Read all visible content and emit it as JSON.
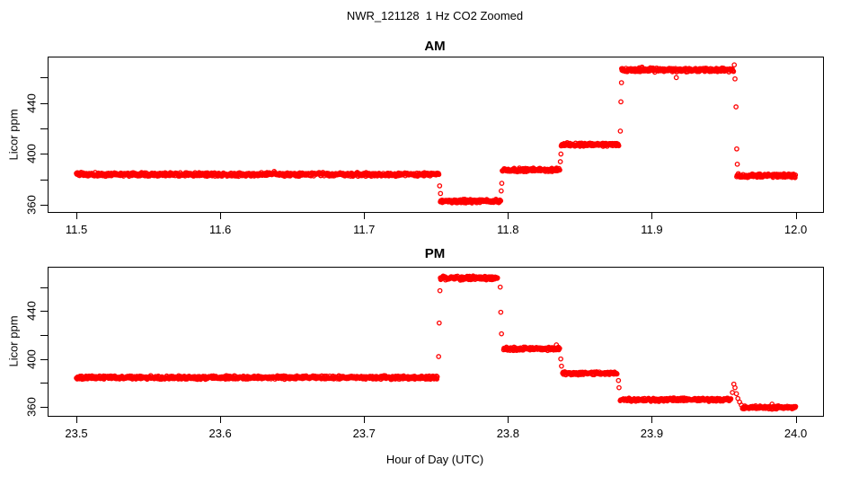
{
  "page": {
    "title": "NWR_121128  1 Hz CO2 Zoomed",
    "xlabel": "Hour of Day (UTC)"
  },
  "colors": {
    "data_points": "#ff0000",
    "axis": "#000000",
    "background": "#ffffff"
  },
  "chart_data": [
    {
      "id": "am",
      "type": "scatter",
      "title": "AM",
      "ylabel": "Licor ppm",
      "marker": "open-circle",
      "legend": "none",
      "grid": false,
      "xlim": [
        11.48,
        12.019
      ],
      "ylim": [
        354.5,
        476.5
      ],
      "xticks": [
        11.5,
        11.6,
        11.7,
        11.8,
        11.9,
        12.0
      ],
      "xtick_labels": [
        "11.5",
        "11.6",
        "11.7",
        "11.8",
        "11.9",
        "12.0"
      ],
      "yticks": [
        360,
        380,
        400,
        420,
        440,
        460
      ],
      "ytick_labels": [
        "360",
        "",
        "400",
        "",
        "440",
        ""
      ],
      "sample_rate_hz": 1,
      "segments": [
        {
          "t_start": 11.5,
          "t_end": 11.752,
          "level": 384.0,
          "noise": 1.1
        },
        {
          "t_start": 11.753,
          "t_end": 11.795,
          "level": 363.0,
          "noise": 1.1
        },
        {
          "t_start": 11.796,
          "t_end": 11.836,
          "level": 387.5,
          "noise": 1.1
        },
        {
          "t_start": 11.837,
          "t_end": 11.877,
          "level": 407.5,
          "noise": 1.1
        },
        {
          "t_start": 11.879,
          "t_end": 11.957,
          "level": 466.0,
          "noise": 1.3
        },
        {
          "t_start": 11.959,
          "t_end": 12.0,
          "level": 383.0,
          "noise": 1.1
        }
      ],
      "transition_points": [
        {
          "t": 11.7525,
          "v": 375
        },
        {
          "t": 11.7531,
          "v": 369
        },
        {
          "t": 11.7953,
          "v": 371
        },
        {
          "t": 11.7957,
          "v": 377
        },
        {
          "t": 11.8364,
          "v": 394
        },
        {
          "t": 11.8368,
          "v": 400
        },
        {
          "t": 11.8781,
          "v": 418
        },
        {
          "t": 11.8785,
          "v": 441
        },
        {
          "t": 11.8789,
          "v": 456
        },
        {
          "t": 11.917,
          "v": 460
        },
        {
          "t": 11.9573,
          "v": 470
        },
        {
          "t": 11.9578,
          "v": 459
        },
        {
          "t": 11.9585,
          "v": 437
        },
        {
          "t": 11.959,
          "v": 404
        },
        {
          "t": 11.9594,
          "v": 392
        }
      ]
    },
    {
      "id": "pm",
      "type": "scatter",
      "title": "PM",
      "ylabel": "Licor ppm",
      "marker": "open-circle",
      "legend": "none",
      "grid": false,
      "xlim": [
        23.48,
        24.019
      ],
      "ylim": [
        352.5,
        477.0
      ],
      "xticks": [
        23.5,
        23.6,
        23.7,
        23.8,
        23.9,
        24.0
      ],
      "xtick_labels": [
        "23.5",
        "23.6",
        "23.7",
        "23.8",
        "23.9",
        "24.0"
      ],
      "yticks": [
        360,
        380,
        400,
        420,
        440,
        460
      ],
      "ytick_labels": [
        "360",
        "",
        "400",
        "",
        "440",
        ""
      ],
      "sample_rate_hz": 1,
      "segments": [
        {
          "t_start": 23.5,
          "t_end": 23.751,
          "level": 384.5,
          "noise": 1.1
        },
        {
          "t_start": 23.753,
          "t_end": 23.793,
          "level": 467.5,
          "noise": 1.3
        },
        {
          "t_start": 23.797,
          "t_end": 23.836,
          "level": 408.5,
          "noise": 1.1
        },
        {
          "t_start": 23.838,
          "t_end": 23.876,
          "level": 388.0,
          "noise": 1.1
        },
        {
          "t_start": 23.878,
          "t_end": 23.955,
          "level": 366.0,
          "noise": 1.1
        },
        {
          "t_start": 23.963,
          "t_end": 24.0,
          "level": 359.5,
          "noise": 1.0
        }
      ],
      "transition_points": [
        {
          "t": 23.7518,
          "v": 402
        },
        {
          "t": 23.7522,
          "v": 430
        },
        {
          "t": 23.7527,
          "v": 457
        },
        {
          "t": 23.7946,
          "v": 460
        },
        {
          "t": 23.795,
          "v": 439
        },
        {
          "t": 23.7955,
          "v": 421
        },
        {
          "t": 23.8367,
          "v": 400
        },
        {
          "t": 23.8372,
          "v": 394
        },
        {
          "t": 23.8768,
          "v": 382
        },
        {
          "t": 23.8772,
          "v": 376
        },
        {
          "t": 23.956,
          "v": 372
        },
        {
          "t": 23.957,
          "v": 379
        },
        {
          "t": 23.9578,
          "v": 376
        },
        {
          "t": 23.9588,
          "v": 371
        },
        {
          "t": 23.9598,
          "v": 367
        },
        {
          "t": 23.961,
          "v": 364
        },
        {
          "t": 23.9622,
          "v": 361.5
        }
      ]
    }
  ]
}
